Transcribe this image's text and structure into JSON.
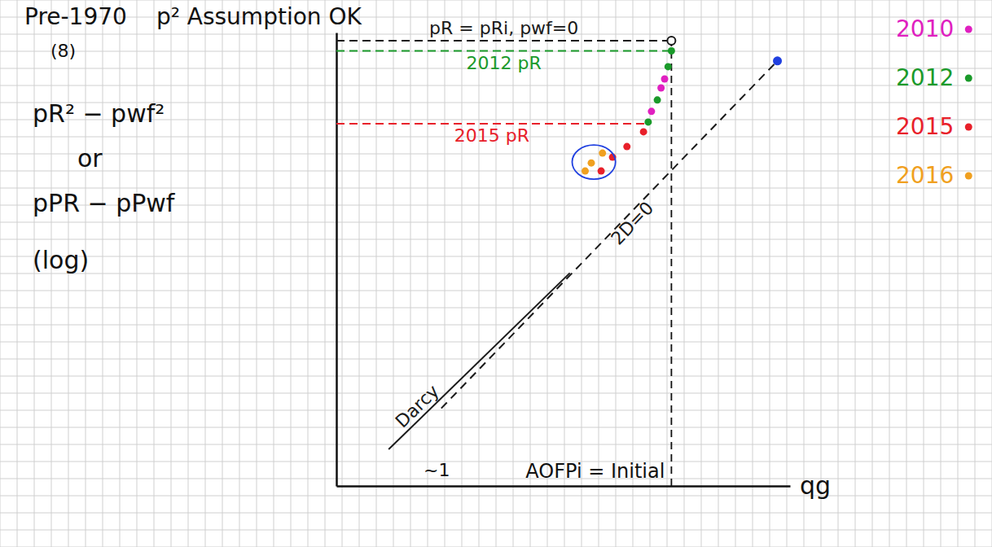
{
  "chart_data": {
    "type": "scatter",
    "title": "Pre-1970",
    "subtitle": "p² Assumption OK",
    "annotations": [
      "(8)",
      "~1"
    ],
    "ylabel": [
      "pR² − pwf²",
      "or",
      "pPR − pPwf",
      "(log)"
    ],
    "xlabel": "qg",
    "log": true,
    "tick_labels": false,
    "xlim": [
      1,
      100
    ],
    "ylim": [
      1,
      100
    ],
    "legend": "top-right",
    "series": [
      {
        "name": "2010",
        "type": "scatter",
        "marker": "dot",
        "color": "#e020c0",
        "x": [
          28,
          27,
          24.5
        ],
        "values": [
          62.4,
          57,
          44.9
        ]
      },
      {
        "name": "2012",
        "type": "scatter",
        "marker": "dot",
        "color": "#1a9a2a",
        "x": [
          30,
          29,
          26,
          23.7
        ],
        "values": [
          83,
          70.7,
          50.4,
          40.3
        ]
      },
      {
        "name": "2015",
        "type": "scatter",
        "marker": "dot",
        "color": "#e8202a",
        "x": [
          22.6,
          19.1,
          16.5,
          14.7
        ],
        "values": [
          36.5,
          31.4,
          28.2,
          24.5
        ]
      },
      {
        "name": "2016",
        "type": "scatter",
        "marker": "circled",
        "color": "#f0a020",
        "x": [
          14.9,
          13.3,
          12.5
        ],
        "values": [
          29.4,
          26.6,
          24.5
        ]
      },
      {
        "name": "Darcy",
        "type": "line",
        "line_style": "solid",
        "color": "#1a1a1a",
        "x": [
          1.7,
          10.7
        ],
        "values": [
          1.45,
          8.7
        ]
      },
      {
        "name": "2D=0",
        "type": "line",
        "line_style": "dashed",
        "color": "#1a1a1a",
        "x": [
          2.9,
          88
        ],
        "values": [
          2.2,
          75
        ]
      }
    ],
    "hlines": [
      {
        "label": "pR = pRi, pwf=0",
        "y": 92,
        "x_end": 30,
        "color": "#1a1a1a",
        "marker": "open_circle"
      },
      {
        "label": "2012 pR",
        "y": 83,
        "x_end": 30,
        "color": "#1a9a2a"
      },
      {
        "label": "2015 pR",
        "y": 39.6,
        "x_end": 23.5,
        "color": "#e8202a"
      }
    ],
    "vline": {
      "label": "AOFPi = Initial",
      "x": 30,
      "y_end": 92
    },
    "points": [
      {
        "x": 88,
        "y": 75,
        "color": "#2040e0"
      }
    ]
  }
}
